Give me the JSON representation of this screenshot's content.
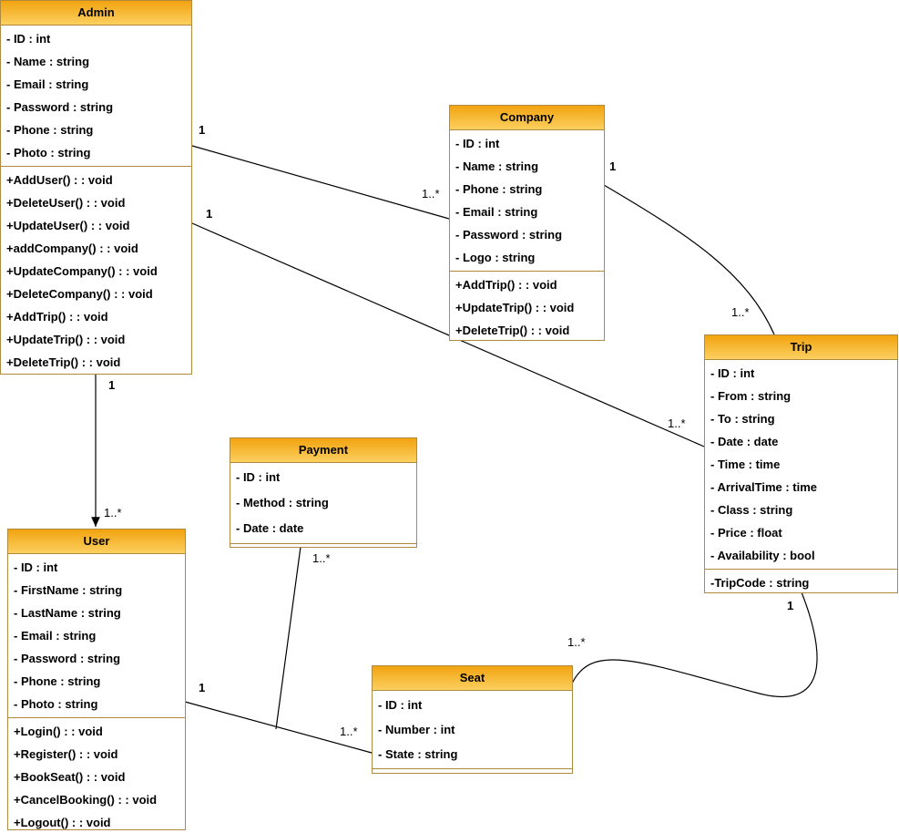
{
  "colors": {
    "header_top": "#f2a30f",
    "header_bottom": "#fcd060",
    "border": "#b08a3e"
  },
  "classes": {
    "admin": {
      "name": "Admin",
      "attributes": [
        "- ID : int",
        "- Name : string",
        "- Email : string",
        "- Password : string",
        "- Phone : string",
        "- Photo : string"
      ],
      "methods": [
        "+AddUser() : : void",
        "+DeleteUser() : : void",
        "+UpdateUser() : : void",
        "+addCompany() : : void",
        "+UpdateCompany() : : void",
        "+DeleteCompany() : : void",
        "+AddTrip() : : void",
        "+UpdateTrip() : : void",
        "+DeleteTrip() : : void"
      ]
    },
    "company": {
      "name": "Company",
      "attributes": [
        "- ID : int",
        "- Name : string",
        "- Phone : string",
        "- Email : string",
        "- Password : string",
        "- Logo : string"
      ],
      "methods": [
        "+AddTrip() : : void",
        "+UpdateTrip() : : void",
        "+DeleteTrip() : : void"
      ]
    },
    "trip": {
      "name": "Trip",
      "attributes": [
        "- ID : int",
        "- From : string",
        "- To : string",
        "- Date : date",
        "- Time : time",
        "- ArrivalTime : time",
        "- Class : string",
        "- Price : float",
        "- Availability : bool"
      ],
      "methods": [
        "-TripCode : string"
      ]
    },
    "payment": {
      "name": "Payment",
      "attributes": [
        "- ID : int",
        "- Method : string",
        "- Date : date"
      ],
      "methods": []
    },
    "user": {
      "name": "User",
      "attributes": [
        "- ID : int",
        "- FirstName : string",
        "- LastName : string",
        "- Email : string",
        "- Password : string",
        "- Phone : string",
        "- Photo : string"
      ],
      "methods": [
        "+Login() : : void",
        "+Register() : : void",
        "+BookSeat() : : void",
        "+CancelBooking() : : void",
        "+Logout() : : void"
      ]
    },
    "seat": {
      "name": "Seat",
      "attributes": [
        "- ID : int",
        "- Number : int",
        "- State : string"
      ],
      "methods": []
    }
  },
  "multiplicities": {
    "admin_company_a": "1",
    "admin_company_b": "1..*",
    "admin_trip_a": "1",
    "admin_trip_b": "1..*",
    "company_trip_a": "1",
    "company_trip_b": "1..*",
    "admin_user_a": "1",
    "admin_user_b": "1..*",
    "user_seat_a": "1",
    "user_seat_b": "1..*",
    "payment_link": "1..*",
    "seat_trip_a": "1..*",
    "seat_trip_b": "1"
  }
}
